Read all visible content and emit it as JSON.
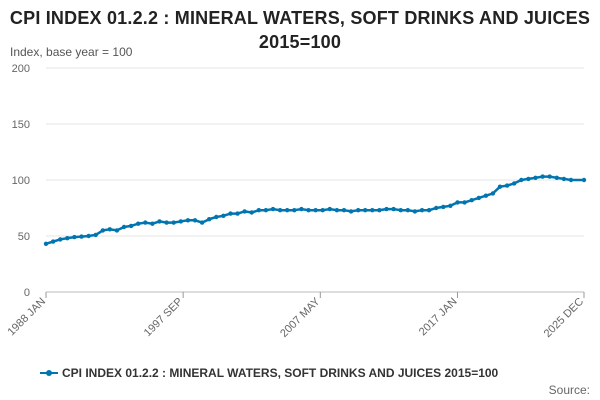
{
  "chart_data": {
    "type": "line",
    "title": "CPI INDEX 01.2.2 : MINERAL WATERS, SOFT DRINKS AND JUICES 2015=100",
    "ylabel": "Index, base year = 100",
    "xlabel": "",
    "ylim": [
      0,
      200
    ],
    "y_ticks": [
      "0",
      "50",
      "100",
      "150",
      "200"
    ],
    "x_tick_labels": [
      "1988 JAN",
      "1997 SEP",
      "2007 MAY",
      "2017 JAN",
      "2025 DEC"
    ],
    "x_tick_years": [
      1988.0,
      1997.667,
      2007.333,
      2017.0,
      2025.917
    ],
    "x_range": [
      1988.0,
      2025.917
    ],
    "grid": true,
    "legend_position": "bottom",
    "series": [
      {
        "name": "CPI INDEX 01.2.2 : MINERAL WATERS, SOFT DRINKS AND JUICES 2015=100",
        "color": "#0075b0",
        "points": [
          [
            1988.0,
            43
          ],
          [
            1988.5,
            45
          ],
          [
            1989.0,
            47
          ],
          [
            1989.5,
            48
          ],
          [
            1990.0,
            49
          ],
          [
            1990.5,
            49.5
          ],
          [
            1991.0,
            50
          ],
          [
            1991.5,
            51
          ],
          [
            1992.0,
            55
          ],
          [
            1992.5,
            56
          ],
          [
            1993.0,
            55
          ],
          [
            1993.5,
            58
          ],
          [
            1994.0,
            59
          ],
          [
            1994.5,
            61
          ],
          [
            1995.0,
            62
          ],
          [
            1995.5,
            61
          ],
          [
            1996.0,
            63
          ],
          [
            1996.5,
            62
          ],
          [
            1997.0,
            62
          ],
          [
            1997.5,
            63
          ],
          [
            1998.0,
            64
          ],
          [
            1998.5,
            64
          ],
          [
            1999.0,
            62
          ],
          [
            1999.5,
            65
          ],
          [
            2000.0,
            67
          ],
          [
            2000.5,
            68
          ],
          [
            2001.0,
            70
          ],
          [
            2001.5,
            70
          ],
          [
            2002.0,
            72
          ],
          [
            2002.5,
            71
          ],
          [
            2003.0,
            73
          ],
          [
            2003.5,
            73
          ],
          [
            2004.0,
            74
          ],
          [
            2004.5,
            73
          ],
          [
            2005.0,
            73
          ],
          [
            2005.5,
            73
          ],
          [
            2006.0,
            74
          ],
          [
            2006.5,
            73
          ],
          [
            2007.0,
            73
          ],
          [
            2007.5,
            73
          ],
          [
            2008.0,
            74
          ],
          [
            2008.5,
            73
          ],
          [
            2009.0,
            73
          ],
          [
            2009.5,
            72
          ],
          [
            2010.0,
            73
          ],
          [
            2010.5,
            73
          ],
          [
            2011.0,
            73
          ],
          [
            2011.5,
            73
          ],
          [
            2012.0,
            74
          ],
          [
            2012.5,
            74
          ],
          [
            2013.0,
            73
          ],
          [
            2013.5,
            73
          ],
          [
            2014.0,
            72
          ],
          [
            2014.5,
            73
          ],
          [
            2015.0,
            73
          ],
          [
            2015.5,
            75
          ],
          [
            2016.0,
            76
          ],
          [
            2016.5,
            77
          ],
          [
            2017.0,
            80
          ],
          [
            2017.5,
            80
          ],
          [
            2018.0,
            82
          ],
          [
            2018.5,
            84
          ],
          [
            2019.0,
            86
          ],
          [
            2019.5,
            88
          ],
          [
            2020.0,
            94
          ],
          [
            2020.5,
            95
          ],
          [
            2021.0,
            97
          ],
          [
            2021.5,
            100
          ],
          [
            2022.0,
            101
          ],
          [
            2022.5,
            102
          ],
          [
            2023.0,
            103
          ],
          [
            2023.5,
            103
          ],
          [
            2024.0,
            102
          ],
          [
            2024.5,
            101
          ],
          [
            2025.0,
            100
          ],
          [
            2025.917,
            100
          ]
        ]
      }
    ],
    "source": "Source:"
  }
}
